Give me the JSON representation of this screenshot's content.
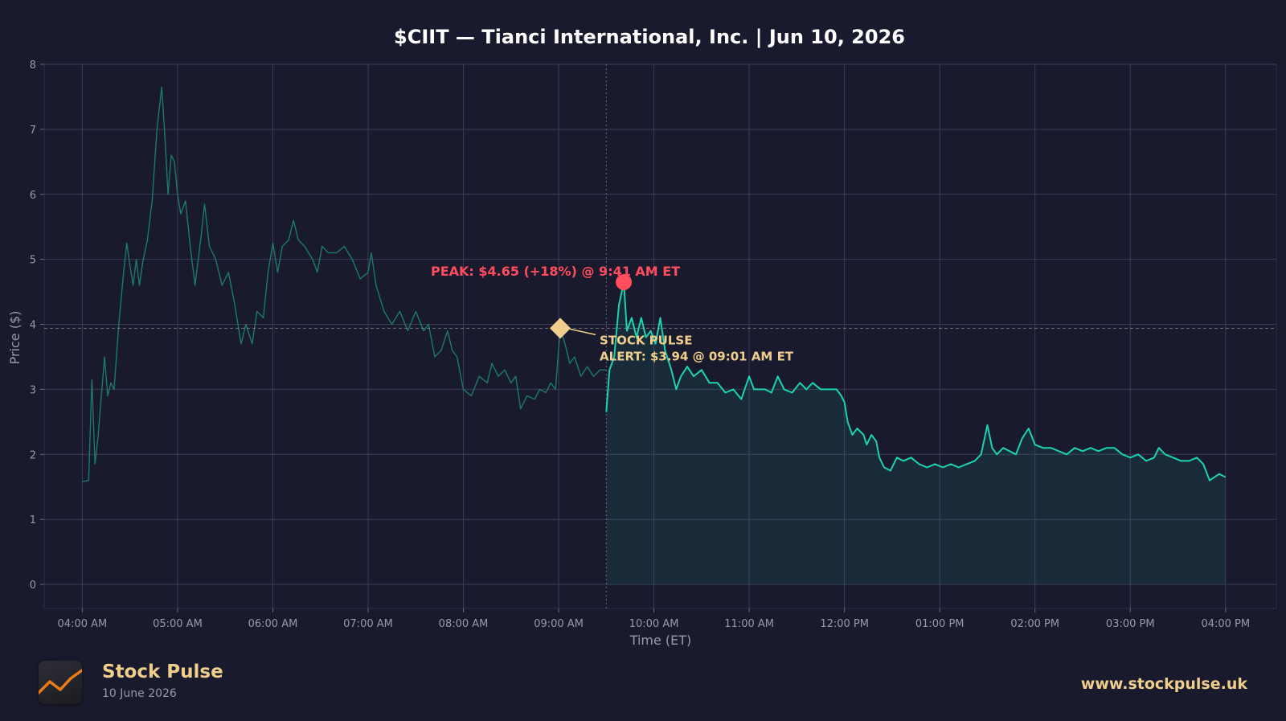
{
  "chart_data": {
    "type": "line",
    "title": "$CIIT — Tianci International, Inc.  |  Jun 10, 2026",
    "xlabel": "Time (ET)",
    "ylabel": "Price ($)",
    "x_ticks": [
      "04:00 AM",
      "05:00 AM",
      "06:00 AM",
      "07:00 AM",
      "08:00 AM",
      "09:00 AM",
      "10:00 AM",
      "11:00 AM",
      "12:00 PM",
      "01:00 PM",
      "02:00 PM",
      "03:00 PM",
      "04:00 PM"
    ],
    "y_ticks": [
      "0",
      "1",
      "2",
      "3",
      "4",
      "5",
      "6",
      "7",
      "8"
    ],
    "xlim": [
      "03:36 AM",
      "04:32 PM"
    ],
    "ylim": [
      -0.37,
      8
    ],
    "grid": true,
    "market_open": "09:30 AM",
    "series": [
      {
        "segment": "pre-market",
        "color": "#1b7a6c",
        "points": [
          [
            "04:00 AM",
            1.58
          ],
          [
            "04:04 AM",
            1.6
          ],
          [
            "04:06 AM",
            3.15
          ],
          [
            "04:08 AM",
            1.85
          ],
          [
            "04:10 AM",
            2.3
          ],
          [
            "04:12 AM",
            2.9
          ],
          [
            "04:14 AM",
            3.5
          ],
          [
            "04:16 AM",
            2.9
          ],
          [
            "04:18 AM",
            3.1
          ],
          [
            "04:20 AM",
            3.0
          ],
          [
            "04:23 AM",
            4.0
          ],
          [
            "04:26 AM",
            4.8
          ],
          [
            "04:28 AM",
            5.25
          ],
          [
            "04:30 AM",
            4.9
          ],
          [
            "04:32 AM",
            4.6
          ],
          [
            "04:34 AM",
            5.0
          ],
          [
            "04:36 AM",
            4.6
          ],
          [
            "04:38 AM",
            4.95
          ],
          [
            "04:41 AM",
            5.3
          ],
          [
            "04:44 AM",
            5.9
          ],
          [
            "04:47 AM",
            7.0
          ],
          [
            "04:50 AM",
            7.65
          ],
          [
            "04:52 AM",
            6.9
          ],
          [
            "04:54 AM",
            6.0
          ],
          [
            "04:56 AM",
            6.6
          ],
          [
            "04:58 AM",
            6.5
          ],
          [
            "05:00 AM",
            6.0
          ],
          [
            "05:02 AM",
            5.7
          ],
          [
            "05:05 AM",
            5.9
          ],
          [
            "05:08 AM",
            5.2
          ],
          [
            "05:11 AM",
            4.6
          ],
          [
            "05:15 AM",
            5.4
          ],
          [
            "05:17 AM",
            5.85
          ],
          [
            "05:20 AM",
            5.2
          ],
          [
            "05:24 AM",
            5.0
          ],
          [
            "05:28 AM",
            4.6
          ],
          [
            "05:32 AM",
            4.8
          ],
          [
            "05:36 AM",
            4.3
          ],
          [
            "05:40 AM",
            3.7
          ],
          [
            "05:43 AM",
            4.0
          ],
          [
            "05:47 AM",
            3.7
          ],
          [
            "05:50 AM",
            4.2
          ],
          [
            "05:54 AM",
            4.1
          ],
          [
            "05:57 AM",
            4.8
          ],
          [
            "06:00 AM",
            5.25
          ],
          [
            "06:03 AM",
            4.8
          ],
          [
            "06:06 AM",
            5.2
          ],
          [
            "06:10 AM",
            5.3
          ],
          [
            "06:13 AM",
            5.6
          ],
          [
            "06:16 AM",
            5.3
          ],
          [
            "06:20 AM",
            5.2
          ],
          [
            "06:25 AM",
            5.0
          ],
          [
            "06:28 AM",
            4.8
          ],
          [
            "06:31 AM",
            5.2
          ],
          [
            "06:35 AM",
            5.1
          ],
          [
            "06:40 AM",
            5.1
          ],
          [
            "06:45 AM",
            5.2
          ],
          [
            "06:50 AM",
            5.0
          ],
          [
            "06:55 AM",
            4.7
          ],
          [
            "07:00 AM",
            4.8
          ],
          [
            "07:02 AM",
            5.1
          ],
          [
            "07:05 AM",
            4.6
          ],
          [
            "07:10 AM",
            4.2
          ],
          [
            "07:15 AM",
            4.0
          ],
          [
            "07:20 AM",
            4.2
          ],
          [
            "07:25 AM",
            3.9
          ],
          [
            "07:30 AM",
            4.2
          ],
          [
            "07:35 AM",
            3.9
          ],
          [
            "07:38 AM",
            4.0
          ],
          [
            "07:42 AM",
            3.5
          ],
          [
            "07:46 AM",
            3.6
          ],
          [
            "07:50 AM",
            3.9
          ],
          [
            "07:53 AM",
            3.6
          ],
          [
            "07:56 AM",
            3.5
          ],
          [
            "08:00 AM",
            3.0
          ],
          [
            "08:05 AM",
            2.9
          ],
          [
            "08:10 AM",
            3.2
          ],
          [
            "08:15 AM",
            3.1
          ],
          [
            "08:18 AM",
            3.4
          ],
          [
            "08:22 AM",
            3.2
          ],
          [
            "08:26 AM",
            3.3
          ],
          [
            "08:30 AM",
            3.1
          ],
          [
            "08:33 AM",
            3.2
          ],
          [
            "08:36 AM",
            2.7
          ],
          [
            "08:40 AM",
            2.9
          ],
          [
            "08:45 AM",
            2.85
          ],
          [
            "08:48 AM",
            3.0
          ],
          [
            "08:52 AM",
            2.95
          ],
          [
            "08:55 AM",
            3.1
          ],
          [
            "08:58 AM",
            3.0
          ],
          [
            "09:01 AM",
            3.94
          ],
          [
            "09:04 AM",
            3.7
          ],
          [
            "09:07 AM",
            3.4
          ],
          [
            "09:10 AM",
            3.5
          ],
          [
            "09:14 AM",
            3.2
          ],
          [
            "09:18 AM",
            3.35
          ],
          [
            "09:22 AM",
            3.2
          ],
          [
            "09:26 AM",
            3.3
          ],
          [
            "09:30 AM",
            3.3
          ]
        ]
      },
      {
        "segment": "regular-session",
        "color": "#19d3b3",
        "points": [
          [
            "09:30 AM",
            2.65
          ],
          [
            "09:32 AM",
            3.3
          ],
          [
            "09:35 AM",
            3.5
          ],
          [
            "09:38 AM",
            4.3
          ],
          [
            "09:41 AM",
            4.65
          ],
          [
            "09:43 AM",
            3.9
          ],
          [
            "09:46 AM",
            4.1
          ],
          [
            "09:49 AM",
            3.8
          ],
          [
            "09:52 AM",
            4.1
          ],
          [
            "09:55 AM",
            3.8
          ],
          [
            "09:58 AM",
            3.9
          ],
          [
            "10:01 AM",
            3.7
          ],
          [
            "10:04 AM",
            4.1
          ],
          [
            "10:07 AM",
            3.6
          ],
          [
            "10:11 AM",
            3.3
          ],
          [
            "10:14 AM",
            3.0
          ],
          [
            "10:17 AM",
            3.2
          ],
          [
            "10:21 AM",
            3.35
          ],
          [
            "10:25 AM",
            3.2
          ],
          [
            "10:30 AM",
            3.3
          ],
          [
            "10:35 AM",
            3.1
          ],
          [
            "10:40 AM",
            3.1
          ],
          [
            "10:45 AM",
            2.95
          ],
          [
            "10:50 AM",
            3.0
          ],
          [
            "10:55 AM",
            2.85
          ],
          [
            "11:00 AM",
            3.2
          ],
          [
            "11:03 AM",
            3.0
          ],
          [
            "11:06 AM",
            3.0
          ],
          [
            "11:10 AM",
            3.0
          ],
          [
            "11:14 AM",
            2.95
          ],
          [
            "11:18 AM",
            3.2
          ],
          [
            "11:22 AM",
            3.0
          ],
          [
            "11:27 AM",
            2.95
          ],
          [
            "11:32 AM",
            3.1
          ],
          [
            "11:36 AM",
            3.0
          ],
          [
            "11:40 AM",
            3.1
          ],
          [
            "11:45 AM",
            3.0
          ],
          [
            "11:50 AM",
            3.0
          ],
          [
            "11:55 AM",
            3.0
          ],
          [
            "11:58 AM",
            2.9
          ],
          [
            "12:00 PM",
            2.8
          ],
          [
            "12:02 PM",
            2.5
          ],
          [
            "12:05 PM",
            2.3
          ],
          [
            "12:08 PM",
            2.4
          ],
          [
            "12:12 PM",
            2.3
          ],
          [
            "12:14 PM",
            2.15
          ],
          [
            "12:17 PM",
            2.3
          ],
          [
            "12:20 PM",
            2.2
          ],
          [
            "12:22 PM",
            1.95
          ],
          [
            "12:25 PM",
            1.8
          ],
          [
            "12:29 PM",
            1.75
          ],
          [
            "12:33 PM",
            1.95
          ],
          [
            "12:37 PM",
            1.9
          ],
          [
            "12:42 PM",
            1.95
          ],
          [
            "12:47 PM",
            1.85
          ],
          [
            "12:52 PM",
            1.8
          ],
          [
            "12:57 PM",
            1.85
          ],
          [
            "01:02 PM",
            1.8
          ],
          [
            "01:07 PM",
            1.85
          ],
          [
            "01:12 PM",
            1.8
          ],
          [
            "01:17 PM",
            1.85
          ],
          [
            "01:22 PM",
            1.9
          ],
          [
            "01:26 PM",
            2.0
          ],
          [
            "01:30 PM",
            2.45
          ],
          [
            "01:33 PM",
            2.1
          ],
          [
            "01:36 PM",
            2.0
          ],
          [
            "01:40 PM",
            2.1
          ],
          [
            "01:44 PM",
            2.05
          ],
          [
            "01:48 PM",
            2.0
          ],
          [
            "01:52 PM",
            2.25
          ],
          [
            "01:56 PM",
            2.4
          ],
          [
            "02:00 PM",
            2.15
          ],
          [
            "02:05 PM",
            2.1
          ],
          [
            "02:10 PM",
            2.1
          ],
          [
            "02:15 PM",
            2.05
          ],
          [
            "02:20 PM",
            2.0
          ],
          [
            "02:25 PM",
            2.1
          ],
          [
            "02:30 PM",
            2.05
          ],
          [
            "02:35 PM",
            2.1
          ],
          [
            "02:40 PM",
            2.05
          ],
          [
            "02:45 PM",
            2.1
          ],
          [
            "02:50 PM",
            2.1
          ],
          [
            "02:55 PM",
            2.0
          ],
          [
            "03:00 PM",
            1.95
          ],
          [
            "03:05 PM",
            2.0
          ],
          [
            "03:10 PM",
            1.9
          ],
          [
            "03:15 PM",
            1.95
          ],
          [
            "03:18 PM",
            2.1
          ],
          [
            "03:22 PM",
            2.0
          ],
          [
            "03:27 PM",
            1.95
          ],
          [
            "03:32 PM",
            1.9
          ],
          [
            "03:37 PM",
            1.9
          ],
          [
            "03:42 PM",
            1.95
          ],
          [
            "03:46 PM",
            1.85
          ],
          [
            "03:50 PM",
            1.6
          ],
          [
            "03:53 PM",
            1.65
          ],
          [
            "03:56 PM",
            1.7
          ],
          [
            "04:00 PM",
            1.65
          ]
        ]
      }
    ],
    "reference_line": {
      "y": 3.94,
      "style": "dashed"
    },
    "annotations": {
      "peak": {
        "x": "09:41 AM",
        "y": 4.65,
        "label": "PEAK: $4.65 (+18%) @ 9:41 AM ET",
        "color": "#ff4d5e"
      },
      "alert": {
        "x": "09:01 AM",
        "y": 3.94,
        "label_line1": "STOCK PULSE",
        "label_line2": "ALERT: $3.94 @ 09:01 AM ET",
        "color": "#f0cf8c"
      }
    }
  },
  "footer": {
    "brand_name": "Stock Pulse",
    "brand_date": "10 June 2026",
    "url": "www.stockpulse.uk"
  }
}
